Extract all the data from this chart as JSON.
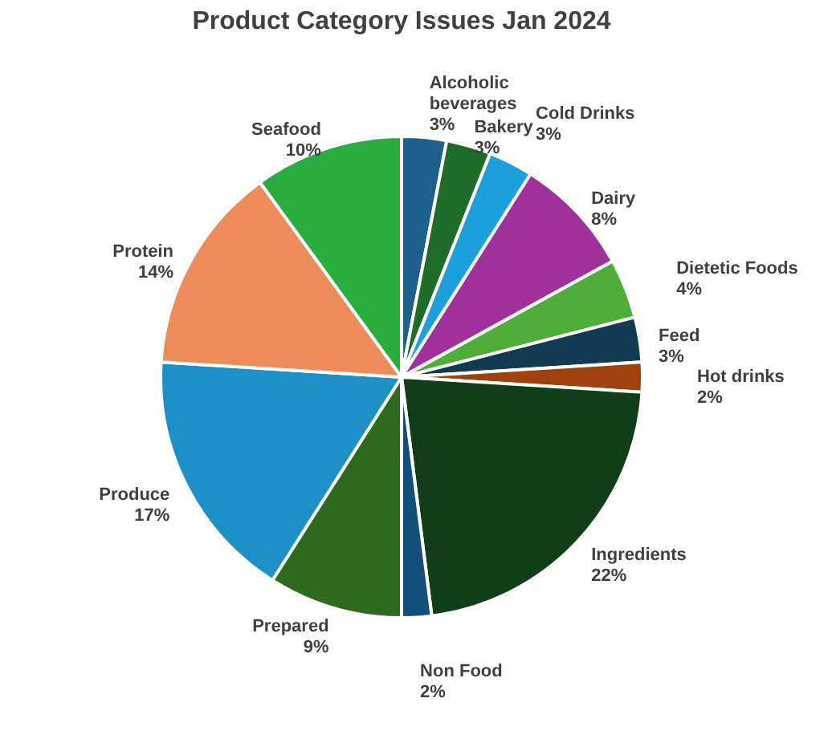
{
  "chart_data": {
    "type": "pie",
    "title": "Product Category Issues Jan 2024",
    "categories": [
      "Alcoholic beverages",
      "Bakery",
      "Cold Drinks",
      "Dairy",
      "Dietetic Foods",
      "Feed",
      "Hot drinks",
      "Ingredients",
      "Non Food",
      "Prepared",
      "Produce",
      "Protein",
      "Seafood"
    ],
    "values": [
      3,
      3,
      3,
      8,
      4,
      3,
      2,
      22,
      2,
      9,
      17,
      14,
      10
    ],
    "value_labels": [
      "3%",
      "3%",
      "3%",
      "8%",
      "4%",
      "3%",
      "2%",
      "22%",
      "2%",
      "9%",
      "17%",
      "14%",
      "10%"
    ],
    "colors": [
      "#1f5f8b",
      "#1e6b2a",
      "#1ca0dc",
      "#a0309a",
      "#4fae3a",
      "#123a52",
      "#a0400f",
      "#113d18",
      "#134f7a",
      "#2d6a1e",
      "#1f8fc8",
      "#ee8c59",
      "#2aad3f"
    ],
    "legend": false
  }
}
